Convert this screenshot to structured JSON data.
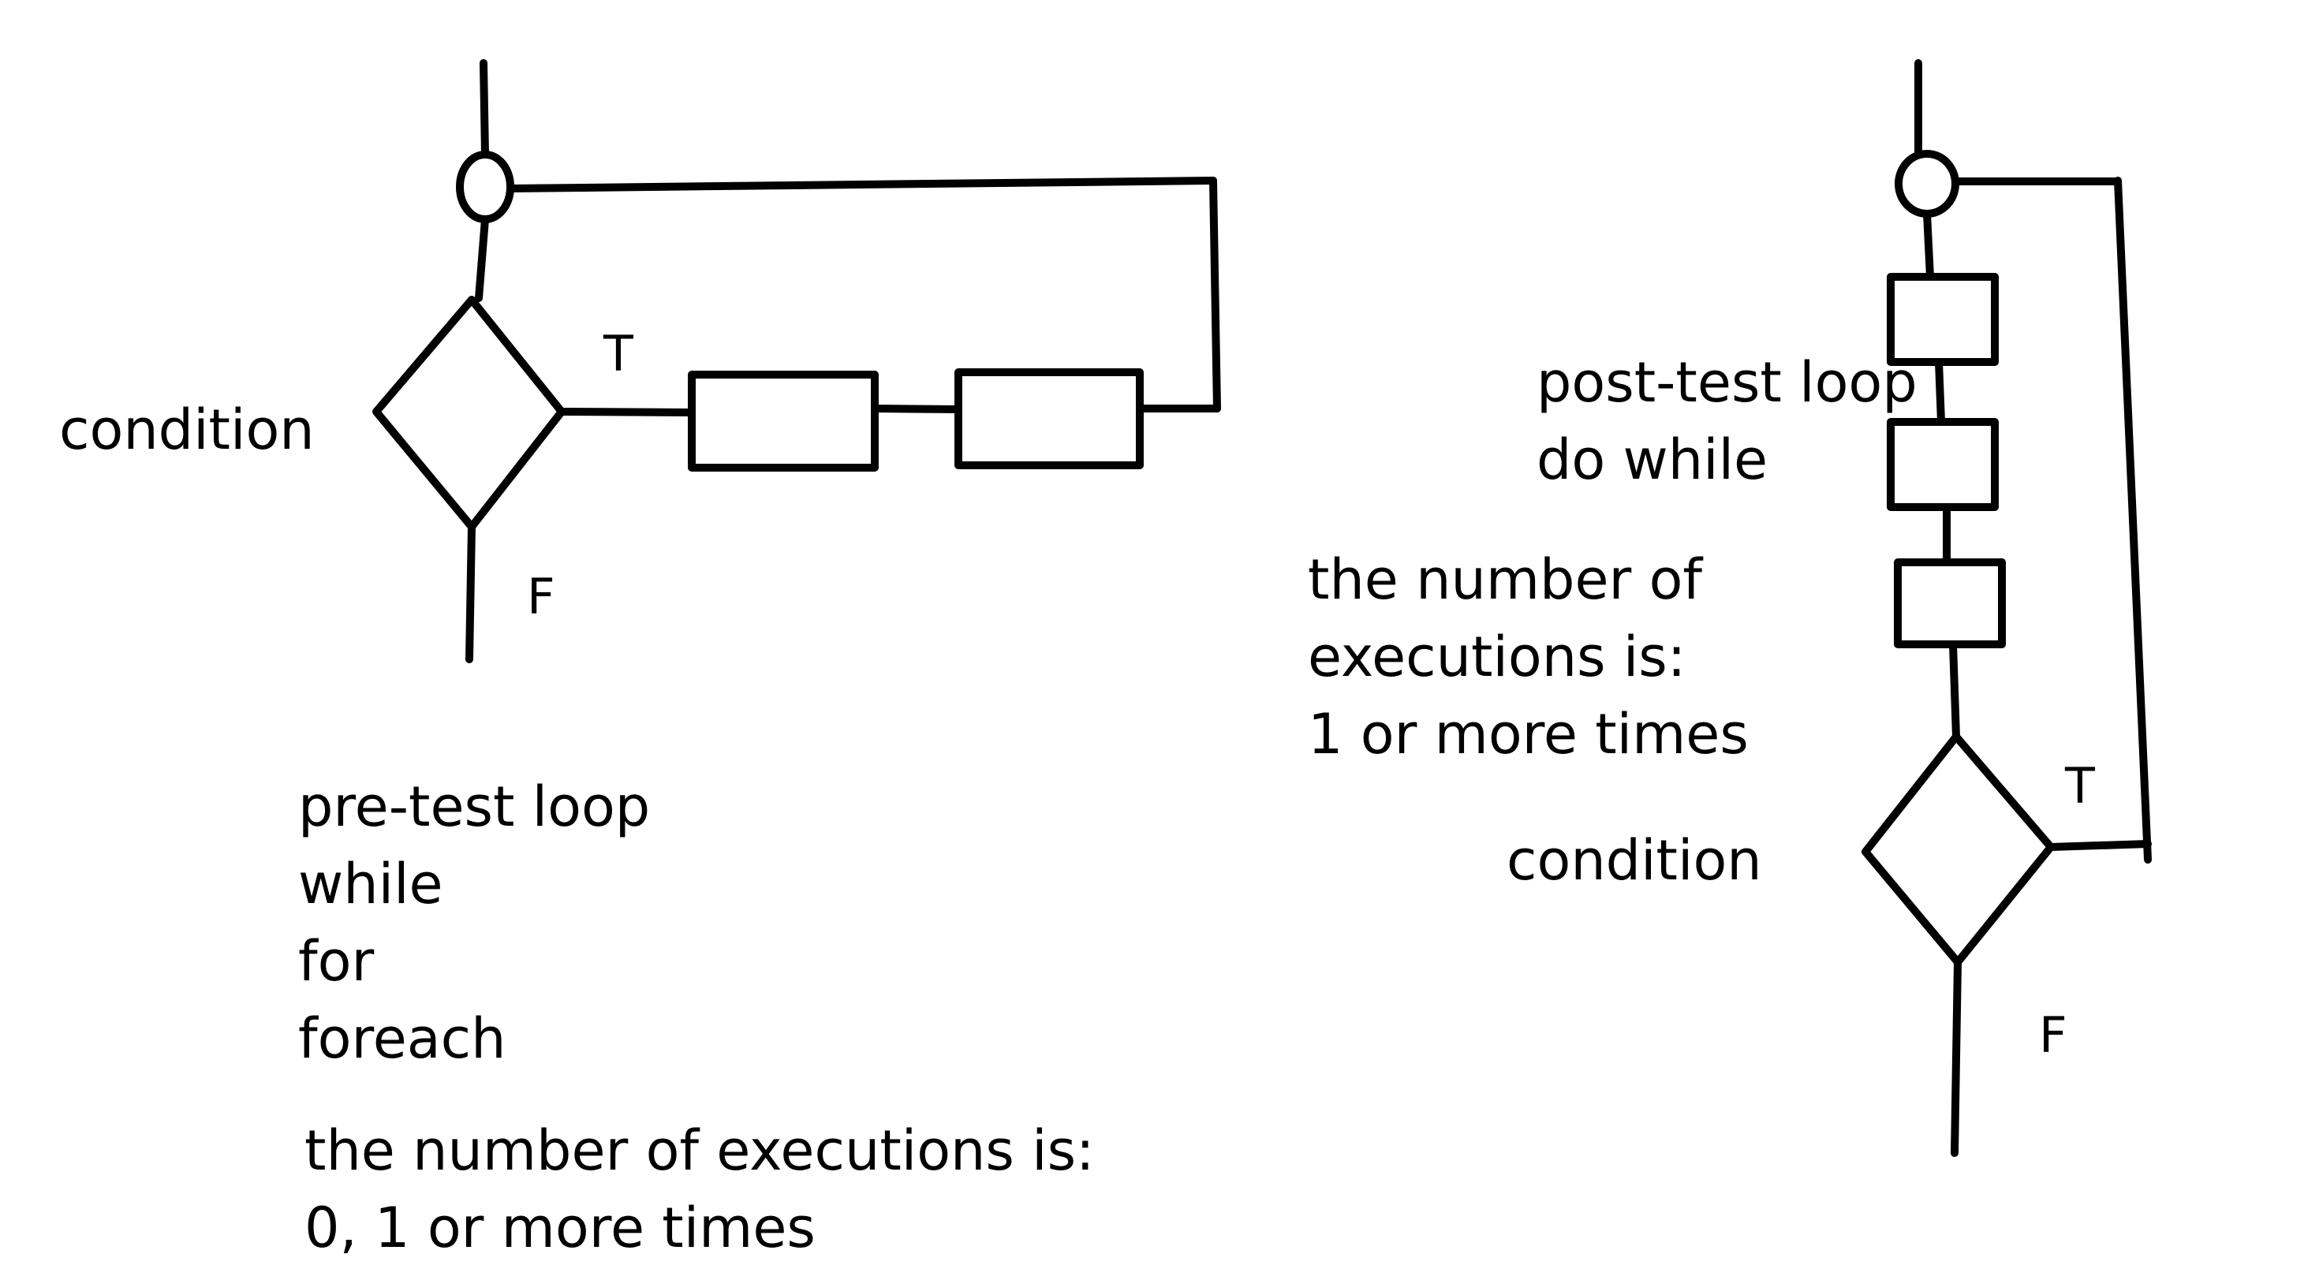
{
  "pretest": {
    "condition": "condition",
    "true_label": "T",
    "false_label": "F",
    "loop_types": [
      "pre-test loop",
      "while",
      "for",
      "foreach"
    ],
    "executions": [
      "the number of executions is:",
      "0, 1 or more times"
    ]
  },
  "posttest": {
    "loop_types": [
      "post-test loop",
      "do while"
    ],
    "executions": [
      "the number of",
      "executions is:",
      "1 or more times"
    ],
    "condition": "condition",
    "true_label": "T",
    "false_label": "F"
  }
}
